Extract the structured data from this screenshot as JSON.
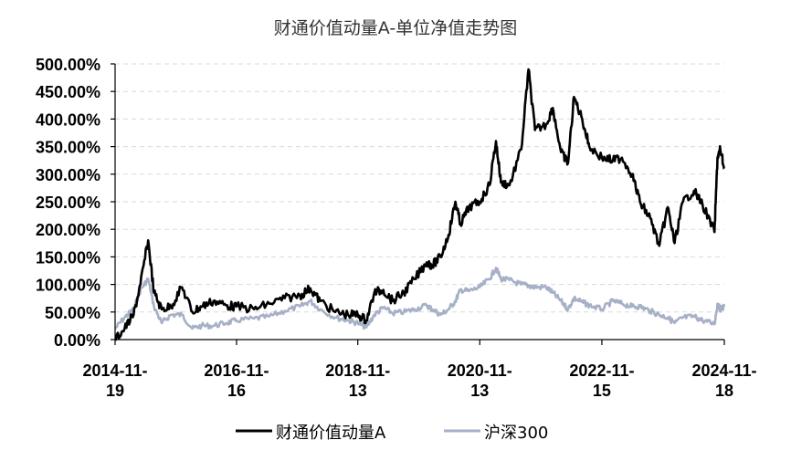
{
  "chart_data": {
    "type": "line",
    "title": "财通价值动量A-单位净值走势图",
    "xlabel": "",
    "ylabel": "",
    "ylim": [
      0,
      500
    ],
    "y_ticks": [
      "0.00%",
      "50.00%",
      "100.00%",
      "150.00%",
      "200.00%",
      "250.00%",
      "300.00%",
      "350.00%",
      "400.00%",
      "450.00%",
      "500.00%"
    ],
    "x_ticks": [
      {
        "date": "2014-11-19",
        "line1": "2014-11-",
        "line2": "19"
      },
      {
        "date": "2016-11-16",
        "line1": "2016-11-",
        "line2": "16"
      },
      {
        "date": "2018-11-13",
        "line1": "2018-11-",
        "line2": "13"
      },
      {
        "date": "2020-11-13",
        "line1": "2020-11-",
        "line2": "13"
      },
      {
        "date": "2022-11-15",
        "line1": "2022-11-",
        "line2": "15"
      },
      {
        "date": "2024-11-18",
        "line1": "2024-11-",
        "line2": "18"
      }
    ],
    "grid": true,
    "legend_position": "bottom",
    "series": [
      {
        "name": "财通价值动量A",
        "color": "#000000",
        "points": [
          [
            "2014-11-19",
            0
          ],
          [
            "2015-01-15",
            20
          ],
          [
            "2015-03-10",
            45
          ],
          [
            "2015-04-20",
            100
          ],
          [
            "2015-06-05",
            180
          ],
          [
            "2015-07-10",
            85
          ],
          [
            "2015-08-25",
            55
          ],
          [
            "2015-10-20",
            60
          ],
          [
            "2015-12-25",
            95
          ],
          [
            "2016-02-25",
            50
          ],
          [
            "2016-04-20",
            60
          ],
          [
            "2016-07-01",
            70
          ],
          [
            "2016-09-15",
            62
          ],
          [
            "2016-11-16",
            60
          ],
          [
            "2017-03-01",
            55
          ],
          [
            "2017-06-01",
            65
          ],
          [
            "2017-09-01",
            75
          ],
          [
            "2017-12-01",
            80
          ],
          [
            "2018-02-01",
            93
          ],
          [
            "2018-04-01",
            70
          ],
          [
            "2018-07-01",
            50
          ],
          [
            "2018-09-15",
            45
          ],
          [
            "2018-11-13",
            45
          ],
          [
            "2019-01-03",
            35
          ],
          [
            "2019-02-20",
            85
          ],
          [
            "2019-04-15",
            90
          ],
          [
            "2019-06-10",
            70
          ],
          [
            "2019-08-15",
            85
          ],
          [
            "2019-10-20",
            110
          ],
          [
            "2019-12-31",
            140
          ],
          [
            "2020-02-03",
            135
          ],
          [
            "2020-03-23",
            150
          ],
          [
            "2020-05-10",
            190
          ],
          [
            "2020-06-20",
            250
          ],
          [
            "2020-07-20",
            210
          ],
          [
            "2020-09-10",
            240
          ],
          [
            "2020-11-13",
            250
          ],
          [
            "2021-01-10",
            280
          ],
          [
            "2021-02-18",
            360
          ],
          [
            "2021-03-20",
            285
          ],
          [
            "2021-05-10",
            280
          ],
          [
            "2021-07-20",
            345
          ],
          [
            "2021-09-01",
            490
          ],
          [
            "2021-10-10",
            380
          ],
          [
            "2021-12-15",
            390
          ],
          [
            "2022-01-25",
            420
          ],
          [
            "2022-03-15",
            340
          ],
          [
            "2022-04-26",
            320
          ],
          [
            "2022-06-01",
            440
          ],
          [
            "2022-07-20",
            400
          ],
          [
            "2022-09-01",
            350
          ],
          [
            "2022-11-15",
            330
          ],
          [
            "2023-01-20",
            325
          ],
          [
            "2023-03-15",
            330
          ],
          [
            "2023-05-15",
            300
          ],
          [
            "2023-07-01",
            250
          ],
          [
            "2023-09-01",
            220
          ],
          [
            "2023-10-25",
            170
          ],
          [
            "2023-12-15",
            240
          ],
          [
            "2024-01-25",
            175
          ],
          [
            "2024-03-15",
            250
          ],
          [
            "2024-05-20",
            270
          ],
          [
            "2024-07-10",
            245
          ],
          [
            "2024-09-20",
            195
          ],
          [
            "2024-10-08",
            330
          ],
          [
            "2024-10-25",
            345
          ],
          [
            "2024-11-18",
            310
          ]
        ]
      },
      {
        "name": "沪深300",
        "color": "#a6b0c6",
        "points": [
          [
            "2014-11-19",
            20
          ],
          [
            "2015-01-15",
            40
          ],
          [
            "2015-03-10",
            55
          ],
          [
            "2015-04-20",
            90
          ],
          [
            "2015-06-05",
            110
          ],
          [
            "2015-07-10",
            60
          ],
          [
            "2015-08-25",
            30
          ],
          [
            "2015-10-20",
            45
          ],
          [
            "2015-12-25",
            45
          ],
          [
            "2016-02-25",
            20
          ],
          [
            "2016-04-20",
            25
          ],
          [
            "2016-07-01",
            25
          ],
          [
            "2016-09-15",
            30
          ],
          [
            "2016-11-16",
            35
          ],
          [
            "2017-03-01",
            38
          ],
          [
            "2017-06-01",
            42
          ],
          [
            "2017-09-01",
            52
          ],
          [
            "2017-12-01",
            60
          ],
          [
            "2018-02-01",
            70
          ],
          [
            "2018-04-01",
            55
          ],
          [
            "2018-07-01",
            40
          ],
          [
            "2018-09-15",
            35
          ],
          [
            "2018-11-13",
            30
          ],
          [
            "2019-01-03",
            22
          ],
          [
            "2019-02-20",
            45
          ],
          [
            "2019-04-15",
            58
          ],
          [
            "2019-06-10",
            48
          ],
          [
            "2019-08-15",
            50
          ],
          [
            "2019-10-20",
            55
          ],
          [
            "2019-12-31",
            62
          ],
          [
            "2020-02-03",
            55
          ],
          [
            "2020-03-23",
            45
          ],
          [
            "2020-05-10",
            55
          ],
          [
            "2020-06-20",
            70
          ],
          [
            "2020-07-20",
            90
          ],
          [
            "2020-09-10",
            88
          ],
          [
            "2020-11-13",
            95
          ],
          [
            "2021-01-10",
            110
          ],
          [
            "2021-02-18",
            130
          ],
          [
            "2021-03-20",
            110
          ],
          [
            "2021-05-10",
            108
          ],
          [
            "2021-07-20",
            100
          ],
          [
            "2021-09-01",
            98
          ],
          [
            "2021-10-10",
            95
          ],
          [
            "2021-12-15",
            95
          ],
          [
            "2022-01-25",
            85
          ],
          [
            "2022-03-15",
            70
          ],
          [
            "2022-04-26",
            55
          ],
          [
            "2022-06-01",
            75
          ],
          [
            "2022-07-20",
            68
          ],
          [
            "2022-09-01",
            62
          ],
          [
            "2022-11-15",
            55
          ],
          [
            "2023-01-20",
            70
          ],
          [
            "2023-03-15",
            65
          ],
          [
            "2023-05-15",
            60
          ],
          [
            "2023-07-01",
            60
          ],
          [
            "2023-09-01",
            52
          ],
          [
            "2023-10-25",
            45
          ],
          [
            "2023-12-15",
            40
          ],
          [
            "2024-01-25",
            30
          ],
          [
            "2024-03-15",
            40
          ],
          [
            "2024-05-20",
            42
          ],
          [
            "2024-07-10",
            35
          ],
          [
            "2024-09-20",
            28
          ],
          [
            "2024-10-08",
            65
          ],
          [
            "2024-10-25",
            55
          ],
          [
            "2024-11-18",
            60
          ]
        ]
      }
    ]
  }
}
